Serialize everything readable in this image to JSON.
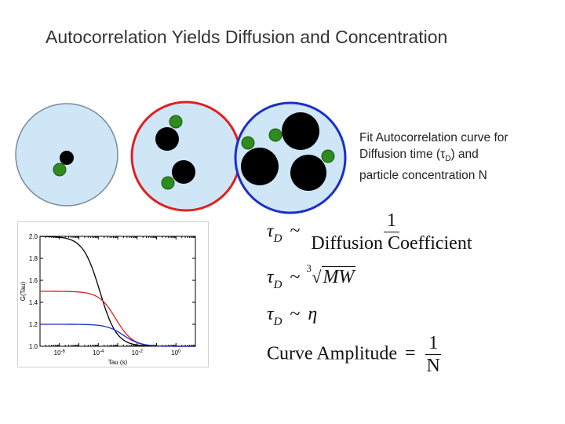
{
  "title": "Autocorrelation Yields Diffusion and Concentration",
  "note": {
    "line1": "Fit Autocorrelation curve for",
    "line2a": "Diffusion time (",
    "tau": "τ",
    "sub_d": "D",
    "line2b": ") and",
    "line3": "particle concentration N"
  },
  "colors": {
    "circle_fill": "#cfe6f7",
    "circle1_border": "#7a8a99",
    "circle2_border": "#e02020",
    "circle3_border": "#1a2fc8",
    "particle_black": "#000000",
    "particle_green": "#2e8b1e"
  },
  "equations": {
    "eq1": {
      "lhs": "τ",
      "sub": "D",
      "rel": "~",
      "numerator": "1",
      "denominator": "Diffusion Coefficient"
    },
    "eq2": {
      "lhs": "τ",
      "sub": "D",
      "rel": "~",
      "root_index": "3",
      "radicand": "MW"
    },
    "eq3": {
      "lhs": "τ",
      "sub": "D",
      "rel": "~",
      "rhs": "η"
    },
    "eq4": {
      "lhs": "Curve Amplitude",
      "rel": "=",
      "numerator": "1",
      "denominator": "N"
    }
  },
  "chart_data": {
    "type": "line",
    "xlabel": "Tau (s)",
    "ylabel": "G(Tau)",
    "x_scale": "log",
    "xlim": [
      1e-07,
      10.0
    ],
    "ylim": [
      1.0,
      2.0
    ],
    "x_ticks": [
      {
        "value": 1e-06,
        "base": "10",
        "exp": "-6"
      },
      {
        "value": 0.0001,
        "base": "10",
        "exp": "-4"
      },
      {
        "value": 0.01,
        "base": "10",
        "exp": "-2"
      },
      {
        "value": 1.0,
        "base": "10",
        "exp": "0"
      }
    ],
    "y_ticks": [
      "1.0",
      "1.2",
      "1.4",
      "1.6",
      "1.8",
      "2.0"
    ],
    "series": [
      {
        "color": "#000000",
        "amplitude": 1.0,
        "tau_d": 0.00012
      },
      {
        "color": "#e02020",
        "amplitude": 0.5,
        "tau_d": 0.0008
      },
      {
        "color": "#1a2fc8",
        "amplitude": 0.2,
        "tau_d": 0.002
      }
    ]
  }
}
